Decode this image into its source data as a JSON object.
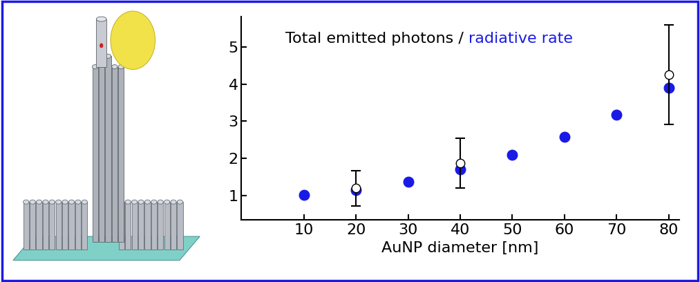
{
  "chart_data": {
    "type": "scatter",
    "annotation": {
      "parts": [
        {
          "text": "Total emitted photons / ",
          "color": "#000000"
        },
        {
          "text": "radiative rate",
          "color": "#1a1ae6"
        }
      ]
    },
    "x_label": "AuNP diameter [nm]",
    "xlim": [
      -2,
      82
    ],
    "xticks": [
      10,
      20,
      30,
      40,
      50,
      60,
      70,
      80
    ],
    "ylim": [
      0.35,
      5.8
    ],
    "yticks": [
      1,
      2,
      3,
      4,
      5
    ],
    "grid": false,
    "series": [
      {
        "type": "scatter",
        "color": "#1a1ae6",
        "marker": "filled",
        "x": [
          10,
          20,
          30,
          40,
          50,
          60,
          70,
          80
        ],
        "values": [
          1.03,
          1.15,
          1.37,
          1.7,
          2.1,
          2.58,
          3.18,
          3.9
        ]
      },
      {
        "type": "errorbar",
        "color": "#000000",
        "marker": "open",
        "x": [
          20,
          40,
          80
        ],
        "values": [
          1.2,
          1.87,
          4.25
        ],
        "errors": [
          0.48,
          0.67,
          1.34
        ]
      }
    ]
  }
}
